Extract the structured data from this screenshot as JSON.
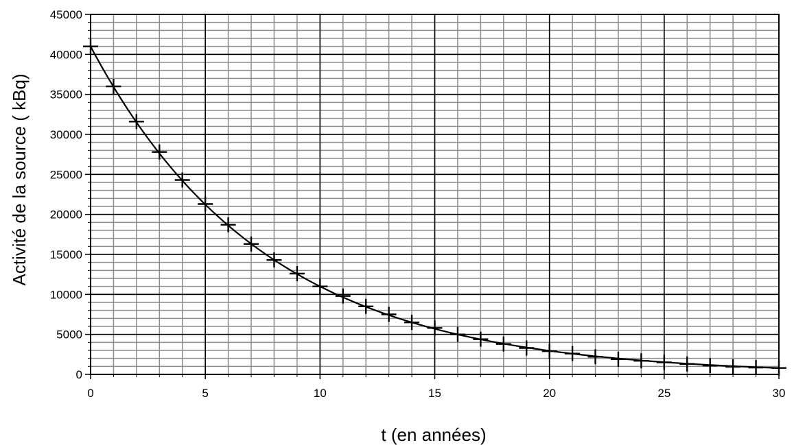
{
  "chart_data": {
    "type": "scatter",
    "title": "",
    "xlabel": "t (en années)",
    "ylabel": "Activité de la source ( kBq)",
    "xlim": [
      0,
      30
    ],
    "ylim": [
      0,
      45000
    ],
    "x_major_ticks": [
      0,
      5,
      10,
      15,
      20,
      25,
      30
    ],
    "x_minor_step": 1,
    "y_major_ticks": [
      0,
      5000,
      10000,
      15000,
      20000,
      25000,
      30000,
      35000,
      40000,
      45000
    ],
    "y_minor_step": 1000,
    "grid": true,
    "legend": "none",
    "marker": "plus",
    "fit_curve": {
      "type": "exponential",
      "a0": 41000,
      "lambda": 0.1316
    },
    "series": [
      {
        "x": [
          0,
          1,
          2,
          3,
          4,
          5,
          6,
          7,
          8,
          9,
          10,
          11,
          12,
          13,
          14,
          15,
          16,
          17,
          18,
          19,
          20,
          21,
          22,
          23,
          24,
          25,
          26,
          27,
          28,
          29,
          30
        ],
        "values": [
          41000,
          36000,
          31600,
          27800,
          24300,
          21300,
          18700,
          16300,
          14300,
          12600,
          11000,
          9800,
          8500,
          7500,
          6500,
          5800,
          5000,
          4400,
          3800,
          3300,
          2900,
          2600,
          2200,
          1900,
          1700,
          1500,
          1300,
          1100,
          950,
          850,
          800
        ]
      }
    ]
  }
}
